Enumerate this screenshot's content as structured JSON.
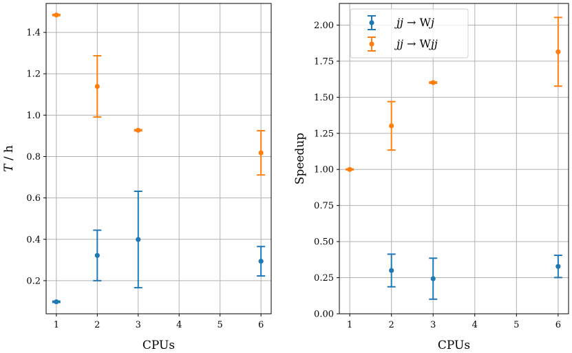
{
  "chart_data": [
    {
      "type": "scatter",
      "title": "",
      "xlabel": "CPUs",
      "ylabel_main": "T",
      "ylabel_unit": " / h",
      "xlim": [
        0.75,
        6.25
      ],
      "ylim": [
        0.04,
        1.54
      ],
      "xticks": [
        1,
        2,
        3,
        4,
        5,
        6
      ],
      "yticks": [
        0.2,
        0.4,
        0.6,
        0.8,
        1.0,
        1.2,
        1.4
      ],
      "ytick_labels": [
        "0.2",
        "0.4",
        "0.6",
        "0.8",
        "1.0",
        "1.2",
        "1.4"
      ],
      "grid": true,
      "series": [
        {
          "name": "jj → Wj",
          "color": "#1f77b4",
          "x": [
            1,
            2,
            3,
            6
          ],
          "y": [
            0.098,
            0.322,
            0.399,
            0.294
          ],
          "err_low": [
            0.003,
            0.122,
            0.233,
            0.071
          ],
          "err_high": [
            0.003,
            0.122,
            0.233,
            0.071
          ]
        },
        {
          "name": "jj → Wjj",
          "color": "#ff7f0e",
          "x": [
            1,
            2,
            3,
            6
          ],
          "y": [
            1.484,
            1.139,
            0.927,
            0.818
          ],
          "err_low": [
            0.003,
            0.148,
            0.003,
            0.107
          ],
          "err_high": [
            0.003,
            0.148,
            0.003,
            0.107
          ]
        }
      ]
    },
    {
      "type": "scatter",
      "title": "",
      "xlabel": "CPUs",
      "ylabel": "Speedup",
      "xlim": [
        0.75,
        6.25
      ],
      "ylim": [
        0.0,
        2.15
      ],
      "xticks": [
        1,
        2,
        3,
        4,
        5,
        6
      ],
      "yticks": [
        0.0,
        0.25,
        0.5,
        0.75,
        1.0,
        1.25,
        1.5,
        1.75,
        2.0
      ],
      "ytick_labels": [
        "0.00",
        "0.25",
        "0.50",
        "0.75",
        "1.00",
        "1.25",
        "1.50",
        "1.75",
        "2.00"
      ],
      "grid": true,
      "legend": "top-left",
      "series": [
        {
          "name": "jj → Wj",
          "color": "#1f77b4",
          "legend_main": "jj",
          "legend_arrow": " → ",
          "legend_rest_upright": "W",
          "legend_rest_italic": "j",
          "x": [
            2,
            3,
            6
          ],
          "y": [
            0.3,
            0.243,
            0.328
          ],
          "err_low": [
            0.113,
            0.142,
            0.077
          ],
          "err_high": [
            0.113,
            0.142,
            0.077
          ]
        },
        {
          "name": "jj → Wjj",
          "color": "#ff7f0e",
          "legend_main": "jj",
          "legend_arrow": " → ",
          "legend_rest_upright": "W",
          "legend_rest_italic": "jj",
          "x": [
            1,
            2,
            3,
            6
          ],
          "y": [
            1.0,
            1.302,
            1.602,
            1.815
          ],
          "err_low": [
            0.003,
            0.168,
            0.005,
            0.238
          ],
          "err_high": [
            0.003,
            0.168,
            0.005,
            0.238
          ]
        }
      ]
    }
  ]
}
